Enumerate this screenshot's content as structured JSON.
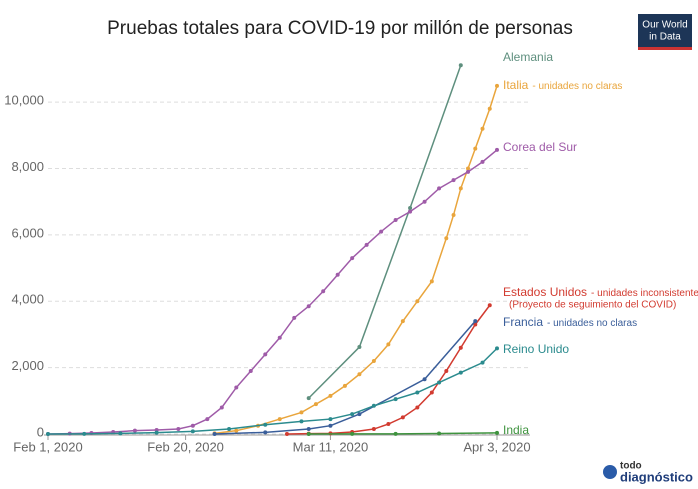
{
  "chart_data": {
    "type": "line",
    "title": "Pruebas totales para COVID-19 por millón de personas",
    "logo": [
      "Our World",
      "in Data"
    ],
    "source_logo": [
      "todo",
      "diagnóstico"
    ],
    "xlim": [
      "2020-02-01",
      "2020-04-03"
    ],
    "xticks": [
      {
        "value": "2020-02-01",
        "label": "Feb 1, 2020"
      },
      {
        "value": "2020-02-20",
        "label": "Feb 20, 2020"
      },
      {
        "value": "2020-03-11",
        "label": "Mar 11, 2020"
      },
      {
        "value": "2020-04-03",
        "label": "Apr 3, 2020"
      }
    ],
    "ylim": [
      0,
      11300
    ],
    "yticks": [
      0,
      {
        "value": 2000,
        "label": "2,000"
      },
      {
        "value": 4000,
        "label": "4,000"
      },
      {
        "value": 6000,
        "label": "6,000"
      },
      {
        "value": 8000,
        "label": "8,000"
      },
      {
        "value": 10000,
        "label": "10,000"
      }
    ],
    "grid": true,
    "series": [
      {
        "name": "Alemania",
        "color": "#5e8f7e",
        "x": [
          "2020-03-08",
          "2020-03-15",
          "2020-03-22",
          "2020-03-29"
        ],
        "values": [
          1080,
          2620,
          6810,
          11110
        ]
      },
      {
        "name": "Italia",
        "note": "- unidades no claras",
        "color": "#e9a53c",
        "x": [
          "2020-02-24",
          "2020-02-27",
          "2020-03-01",
          "2020-03-04",
          "2020-03-07",
          "2020-03-09",
          "2020-03-11",
          "2020-03-13",
          "2020-03-15",
          "2020-03-17",
          "2020-03-19",
          "2020-03-21",
          "2020-03-23",
          "2020-03-25",
          "2020-03-27",
          "2020-03-28",
          "2020-03-29",
          "2020-03-30",
          "2020-03-31",
          "2020-04-01",
          "2020-04-02",
          "2020-04-03"
        ],
        "values": [
          20,
          100,
          250,
          450,
          650,
          900,
          1150,
          1450,
          1800,
          2200,
          2700,
          3400,
          4000,
          4600,
          5900,
          6600,
          7400,
          8000,
          8600,
          9200,
          9800,
          10490
        ]
      },
      {
        "name": "Corea del Sur",
        "color": "#9f5ba8",
        "x": [
          "2020-02-01",
          "2020-02-04",
          "2020-02-07",
          "2020-02-10",
          "2020-02-13",
          "2020-02-16",
          "2020-02-19",
          "2020-02-21",
          "2020-02-23",
          "2020-02-25",
          "2020-02-27",
          "2020-02-29",
          "2020-03-02",
          "2020-03-04",
          "2020-03-06",
          "2020-03-08",
          "2020-03-10",
          "2020-03-12",
          "2020-03-14",
          "2020-03-16",
          "2020-03-18",
          "2020-03-20",
          "2020-03-22",
          "2020-03-24",
          "2020-03-26",
          "2020-03-28",
          "2020-03-30",
          "2020-04-01",
          "2020-04-03"
        ],
        "values": [
          0,
          10,
          30,
          60,
          100,
          120,
          150,
          250,
          450,
          800,
          1400,
          1900,
          2400,
          2900,
          3500,
          3850,
          4300,
          4800,
          5300,
          5700,
          6100,
          6450,
          6700,
          7000,
          7400,
          7650,
          7900,
          8200,
          8560
        ]
      },
      {
        "name": "Estados Unidos",
        "note": "- unidades inconsistentes",
        "note2": "(Proyecto de seguimiento del COVID)",
        "color": "#d23b30",
        "x": [
          "2020-03-05",
          "2020-03-08",
          "2020-03-11",
          "2020-03-14",
          "2020-03-17",
          "2020-03-19",
          "2020-03-21",
          "2020-03-23",
          "2020-03-25",
          "2020-03-27",
          "2020-03-29",
          "2020-03-31",
          "2020-04-02"
        ],
        "values": [
          0,
          10,
          20,
          60,
          150,
          300,
          500,
          800,
          1250,
          1900,
          2600,
          3300,
          3880
        ]
      },
      {
        "name": "Francia",
        "note": "- unidades no claras",
        "color": "#3a5e9a",
        "x": [
          "2020-02-24",
          "2020-03-02",
          "2020-03-08",
          "2020-03-11",
          "2020-03-15",
          "2020-03-24",
          "2020-03-31"
        ],
        "values": [
          0,
          50,
          150,
          250,
          600,
          1650,
          3400
        ]
      },
      {
        "name": "Reino Unido",
        "color": "#2b8b8e",
        "x": [
          "2020-02-01",
          "2020-02-06",
          "2020-02-11",
          "2020-02-16",
          "2020-02-21",
          "2020-02-26",
          "2020-03-02",
          "2020-03-07",
          "2020-03-11",
          "2020-03-14",
          "2020-03-17",
          "2020-03-20",
          "2020-03-23",
          "2020-03-26",
          "2020-03-29",
          "2020-04-01",
          "2020-04-03"
        ],
        "values": [
          0,
          5,
          20,
          40,
          80,
          150,
          280,
          380,
          450,
          600,
          850,
          1050,
          1250,
          1550,
          1850,
          2150,
          2580
        ]
      },
      {
        "name": "India",
        "color": "#3e933e",
        "x": [
          "2020-03-08",
          "2020-03-14",
          "2020-03-20",
          "2020-03-26",
          "2020-04-03"
        ],
        "values": [
          0,
          2,
          5,
          15,
          35
        ]
      }
    ]
  }
}
